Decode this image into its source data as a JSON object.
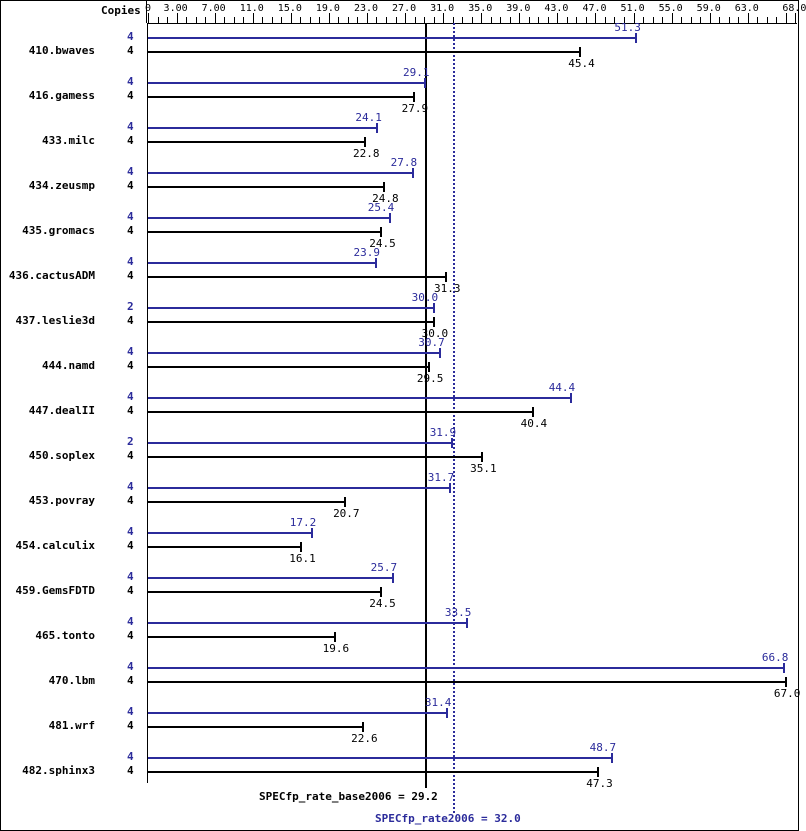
{
  "chart_data": {
    "type": "bar",
    "title": "",
    "xlabel": "",
    "ylabel": "Copies",
    "xlim": [
      0,
      68.0
    ],
    "ticks": [
      "0",
      "3.00",
      "7.00",
      "11.0",
      "15.0",
      "19.0",
      "23.0",
      "27.0",
      "31.0",
      "35.0",
      "39.0",
      "43.0",
      "47.0",
      "51.0",
      "55.0",
      "59.0",
      "63.0",
      "68.0"
    ],
    "categories": [
      "410.bwaves",
      "416.gamess",
      "433.milc",
      "434.zeusmp",
      "435.gromacs",
      "436.cactusADM",
      "437.leslie3d",
      "444.namd",
      "447.dealII",
      "450.soplex",
      "453.povray",
      "454.calculix",
      "459.GemsFDTD",
      "465.tonto",
      "470.lbm",
      "481.wrf",
      "482.sphinx3"
    ],
    "series": [
      {
        "name": "SPECfp_rate2006 (peak)",
        "color": "#2b2b9b",
        "copies": [
          4,
          4,
          4,
          4,
          4,
          4,
          2,
          4,
          4,
          2,
          4,
          4,
          4,
          4,
          4,
          4,
          4
        ],
        "values": [
          51.3,
          29.1,
          24.1,
          27.8,
          25.4,
          23.9,
          30.0,
          30.7,
          44.4,
          31.9,
          31.7,
          17.2,
          25.7,
          33.5,
          66.8,
          31.4,
          48.7
        ]
      },
      {
        "name": "SPECfp_rate_base2006",
        "color": "#000000",
        "copies": [
          4,
          4,
          4,
          4,
          4,
          4,
          4,
          4,
          4,
          4,
          4,
          4,
          4,
          4,
          4,
          4,
          4
        ],
        "values": [
          45.4,
          27.9,
          22.8,
          24.8,
          24.5,
          31.3,
          30.0,
          29.5,
          40.4,
          35.1,
          20.7,
          16.1,
          24.5,
          19.6,
          67.0,
          22.6,
          47.3
        ]
      }
    ],
    "reference_lines": [
      {
        "label": "SPECfp_rate_base2006 = 29.2",
        "value": 29.2,
        "style": "solid"
      },
      {
        "label": "SPECfp_rate2006 = 32.0",
        "value": 32.0,
        "style": "dotted"
      }
    ]
  },
  "header": {
    "copies_label": "Copies"
  },
  "footer": {
    "base_label": "SPECfp_rate_base2006 = 29.2",
    "peak_label": "SPECfp_rate2006 = 32.0"
  }
}
